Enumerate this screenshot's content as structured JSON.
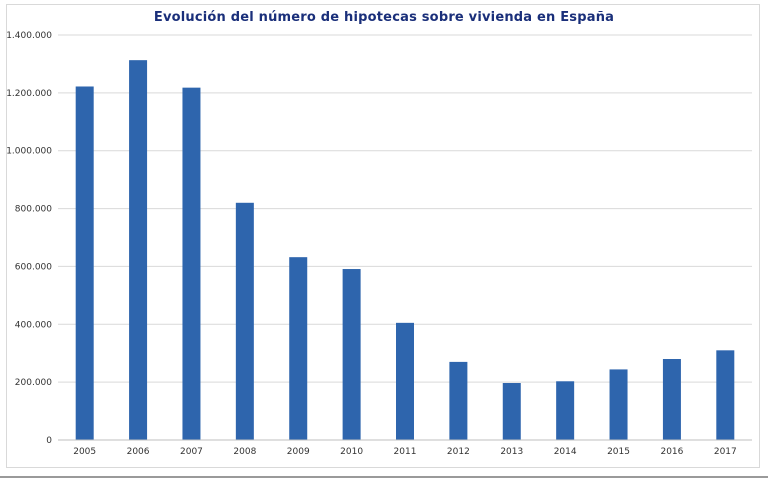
{
  "chart_data": {
    "type": "bar",
    "title": "Evolución  del número  de hipotecas  sobre vivienda  en España",
    "xlabel": "",
    "ylabel": "",
    "categories": [
      "2005",
      "2006",
      "2007",
      "2008",
      "2009",
      "2010",
      "2011",
      "2012",
      "2013",
      "2014",
      "2015",
      "2016",
      "2017"
    ],
    "values": [
      1222000,
      1313000,
      1218000,
      820000,
      632000,
      591000,
      405000,
      270000,
      197000,
      203000,
      244000,
      280000,
      310000
    ],
    "ylim": [
      0,
      1400000
    ],
    "yticks": [
      0,
      200000,
      400000,
      600000,
      800000,
      1000000,
      1200000,
      1400000
    ],
    "ytick_labels": [
      "0",
      "200.000",
      "400.000",
      "600.000",
      "800.000",
      "1.000.000",
      "1.200.000",
      "1.400.000"
    ],
    "grid": true,
    "legend": "none",
    "colors": {
      "bar": "#2e65ad",
      "grid": "#d9d9d9",
      "title": "#1a2f7a"
    }
  }
}
